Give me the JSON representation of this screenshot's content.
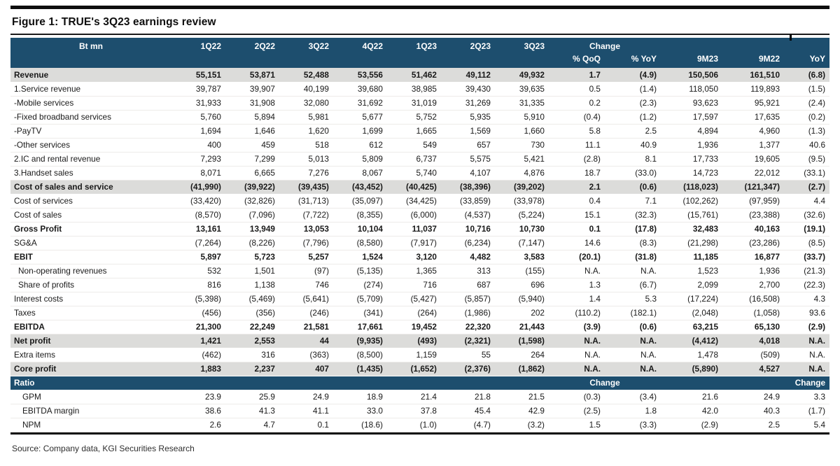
{
  "title": "Figure 1: TRUE's 3Q23 earnings review",
  "source": "Source: Company data, KGI Securities Research",
  "colors": {
    "header_bg": "#1d4e6e",
    "row_shade": "#dcdcda",
    "rule": "#0d0d0d"
  },
  "table": {
    "unit_label": "Bt mn",
    "quarters": [
      "1Q22",
      "2Q22",
      "3Q22",
      "4Q22",
      "1Q23",
      "2Q23",
      "3Q23"
    ],
    "change_label": "Change",
    "subcols": [
      "% QoQ",
      "% YoY",
      "9M23",
      "9M22",
      "YoY"
    ],
    "rows": [
      {
        "label": "Revenue",
        "bold": true,
        "shade": true,
        "values": [
          "55,151",
          "53,871",
          "52,488",
          "53,556",
          "51,462",
          "49,112",
          "49,932",
          "1.7",
          "(4.9)",
          "150,506",
          "161,510",
          "(6.8)"
        ]
      },
      {
        "label": "1.Service revenue",
        "values": [
          "39,787",
          "39,907",
          "40,199",
          "39,680",
          "38,985",
          "39,430",
          "39,635",
          "0.5",
          "(1.4)",
          "118,050",
          "119,893",
          "(1.5)"
        ]
      },
      {
        "label": "-Mobile services",
        "values": [
          "31,933",
          "31,908",
          "32,080",
          "31,692",
          "31,019",
          "31,269",
          "31,335",
          "0.2",
          "(2.3)",
          "93,623",
          "95,921",
          "(2.4)"
        ]
      },
      {
        "label": "-Fixed broadband services",
        "values": [
          "5,760",
          "5,894",
          "5,981",
          "5,677",
          "5,752",
          "5,935",
          "5,910",
          "(0.4)",
          "(1.2)",
          "17,597",
          "17,635",
          "(0.2)"
        ]
      },
      {
        "label": "-PayTV",
        "values": [
          "1,694",
          "1,646",
          "1,620",
          "1,699",
          "1,665",
          "1,569",
          "1,660",
          "5.8",
          "2.5",
          "4,894",
          "4,960",
          "(1.3)"
        ]
      },
      {
        "label": "-Other services",
        "values": [
          "400",
          "459",
          "518",
          "612",
          "549",
          "657",
          "730",
          "11.1",
          "40.9",
          "1,936",
          "1,377",
          "40.6"
        ]
      },
      {
        "label": "2.IC and rental revenue",
        "values": [
          "7,293",
          "7,299",
          "5,013",
          "5,809",
          "6,737",
          "5,575",
          "5,421",
          "(2.8)",
          "8.1",
          "17,733",
          "19,605",
          "(9.5)"
        ]
      },
      {
        "label": "3.Handset sales",
        "values": [
          "8,071",
          "6,665",
          "7,276",
          "8,067",
          "5,740",
          "4,107",
          "4,876",
          "18.7",
          "(33.0)",
          "14,723",
          "22,012",
          "(33.1)"
        ]
      },
      {
        "label": "Cost of sales and service",
        "bold": true,
        "shade": true,
        "values": [
          "(41,990)",
          "(39,922)",
          "(39,435)",
          "(43,452)",
          "(40,425)",
          "(38,396)",
          "(39,202)",
          "2.1",
          "(0.6)",
          "(118,023)",
          "(121,347)",
          "(2.7)"
        ]
      },
      {
        "label": "Cost of services",
        "values": [
          "(33,420)",
          "(32,826)",
          "(31,713)",
          "(35,097)",
          "(34,425)",
          "(33,859)",
          "(33,978)",
          "0.4",
          "7.1",
          "(102,262)",
          "(97,959)",
          "4.4"
        ]
      },
      {
        "label": "Cost of sales",
        "values": [
          "(8,570)",
          "(7,096)",
          "(7,722)",
          "(8,355)",
          "(6,000)",
          "(4,537)",
          "(5,224)",
          "15.1",
          "(32.3)",
          "(15,761)",
          "(23,388)",
          "(32.6)"
        ]
      },
      {
        "label": "Gross Profit",
        "bold": true,
        "values": [
          "13,161",
          "13,949",
          "13,053",
          "10,104",
          "11,037",
          "10,716",
          "10,730",
          "0.1",
          "(17.8)",
          "32,483",
          "40,163",
          "(19.1)"
        ]
      },
      {
        "label": "SG&A",
        "values": [
          "(7,264)",
          "(8,226)",
          "(7,796)",
          "(8,580)",
          "(7,917)",
          "(6,234)",
          "(7,147)",
          "14.6",
          "(8.3)",
          "(21,298)",
          "(23,286)",
          "(8.5)"
        ]
      },
      {
        "label": "EBIT",
        "bold": true,
        "values": [
          "5,897",
          "5,723",
          "5,257",
          "1,524",
          "3,120",
          "4,482",
          "3,583",
          "(20.1)",
          "(31.8)",
          "11,185",
          "16,877",
          "(33.7)"
        ]
      },
      {
        "label": "Non-operating revenues",
        "indent": 1,
        "values": [
          "532",
          "1,501",
          "(97)",
          "(5,135)",
          "1,365",
          "313",
          "(155)",
          "N.A.",
          "N.A.",
          "1,523",
          "1,936",
          "(21.3)"
        ]
      },
      {
        "label": "Share of profits",
        "indent": 1,
        "values": [
          "816",
          "1,138",
          "746",
          "(274)",
          "716",
          "687",
          "696",
          "1.3",
          "(6.7)",
          "2,099",
          "2,700",
          "(22.3)"
        ]
      },
      {
        "label": "Interest costs",
        "values": [
          "(5,398)",
          "(5,469)",
          "(5,641)",
          "(5,709)",
          "(5,427)",
          "(5,857)",
          "(5,940)",
          "1.4",
          "5.3",
          "(17,224)",
          "(16,508)",
          "4.3"
        ]
      },
      {
        "label": "Taxes",
        "values": [
          "(456)",
          "(356)",
          "(246)",
          "(341)",
          "(264)",
          "(1,986)",
          "202",
          "(110.2)",
          "(182.1)",
          "(2,048)",
          "(1,058)",
          "93.6"
        ]
      },
      {
        "label": "EBITDA",
        "bold": true,
        "values": [
          "21,300",
          "22,249",
          "21,581",
          "17,661",
          "19,452",
          "22,320",
          "21,443",
          "(3.9)",
          "(0.6)",
          "63,215",
          "65,130",
          "(2.9)"
        ]
      },
      {
        "label": "Net profit",
        "bold": true,
        "shade": true,
        "values": [
          "1,421",
          "2,553",
          "44",
          "(9,935)",
          "(493)",
          "(2,321)",
          "(1,598)",
          "N.A.",
          "N.A.",
          "(4,412)",
          "4,018",
          "N.A."
        ]
      },
      {
        "label": "Extra items",
        "values": [
          "(462)",
          "316",
          "(363)",
          "(8,500)",
          "1,159",
          "55",
          "264",
          "N.A.",
          "N.A.",
          "1,478",
          "(509)",
          "N.A."
        ]
      },
      {
        "label": "Core profit",
        "bold": true,
        "shade": true,
        "values": [
          "1,883",
          "2,237",
          "407",
          "(1,435)",
          "(1,652)",
          "(2,376)",
          "(1,862)",
          "N.A.",
          "N.A.",
          "(5,890)",
          "4,527",
          "N.A."
        ]
      }
    ],
    "ratio_section": {
      "label": "Ratio",
      "change_mid": "Change",
      "change_right": "Change",
      "rows": [
        {
          "label": "GPM",
          "indent": 2,
          "values": [
            "23.9",
            "25.9",
            "24.9",
            "18.9",
            "21.4",
            "21.8",
            "21.5",
            "(0.3)",
            "(3.4)",
            "21.6",
            "24.9",
            "3.3"
          ]
        },
        {
          "label": "EBITDA margin",
          "indent": 2,
          "values": [
            "38.6",
            "41.3",
            "41.1",
            "33.0",
            "37.8",
            "45.4",
            "42.9",
            "(2.5)",
            "1.8",
            "42.0",
            "40.3",
            "(1.7)"
          ]
        },
        {
          "label": "NPM",
          "indent": 2,
          "values": [
            "2.6",
            "4.7",
            "0.1",
            "(18.6)",
            "(1.0)",
            "(4.7)",
            "(3.2)",
            "1.5",
            "(3.3)",
            "(2.9)",
            "2.5",
            "5.4"
          ]
        }
      ]
    }
  }
}
